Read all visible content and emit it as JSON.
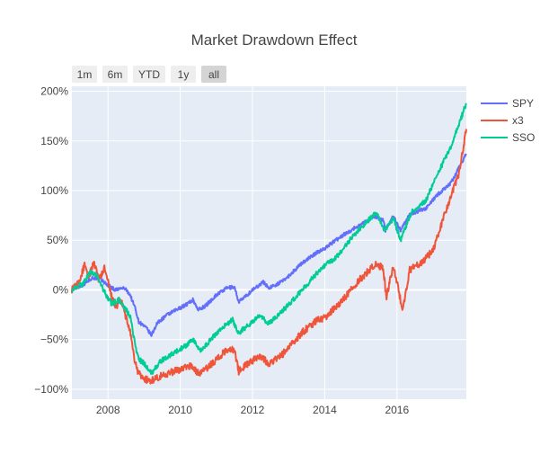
{
  "chart_data": {
    "type": "line",
    "title": "Market Drawdown Effect",
    "xlabel": "",
    "ylabel": "",
    "x_range": [
      2007.0,
      2017.92
    ],
    "ylim": [
      -1.1,
      2.05
    ],
    "x_ticks": [
      {
        "value": 2008,
        "label": "2008"
      },
      {
        "value": 2010,
        "label": "2010"
      },
      {
        "value": 2012,
        "label": "2012"
      },
      {
        "value": 2014,
        "label": "2014"
      },
      {
        "value": 2016,
        "label": "2016"
      }
    ],
    "y_ticks": [
      {
        "value": 2.0,
        "label": "200%"
      },
      {
        "value": 1.5,
        "label": "150%"
      },
      {
        "value": 1.0,
        "label": "100%"
      },
      {
        "value": 0.5,
        "label": "50%"
      },
      {
        "value": 0.0,
        "label": "0%"
      },
      {
        "value": -0.5,
        "label": "−50%"
      },
      {
        "value": -1.0,
        "label": "−100%"
      }
    ],
    "range_buttons": [
      "1m",
      "6m",
      "YTD",
      "1y",
      "all"
    ],
    "active_button": "all",
    "legend_position": "top-right",
    "series": [
      {
        "name": "SPY",
        "color": "#636efa",
        "noise": 0.018,
        "points": [
          [
            2007.0,
            0.0
          ],
          [
            2007.3,
            0.05
          ],
          [
            2007.55,
            0.12
          ],
          [
            2007.75,
            0.12
          ],
          [
            2007.95,
            0.06
          ],
          [
            2008.2,
            0.0
          ],
          [
            2008.45,
            0.02
          ],
          [
            2008.6,
            -0.04
          ],
          [
            2008.75,
            -0.18
          ],
          [
            2008.85,
            -0.32
          ],
          [
            2008.95,
            -0.35
          ],
          [
            2009.1,
            -0.4
          ],
          [
            2009.2,
            -0.46
          ],
          [
            2009.35,
            -0.34
          ],
          [
            2009.6,
            -0.26
          ],
          [
            2009.9,
            -0.2
          ],
          [
            2010.2,
            -0.14
          ],
          [
            2010.35,
            -0.1
          ],
          [
            2010.5,
            -0.2
          ],
          [
            2010.7,
            -0.16
          ],
          [
            2011.0,
            -0.05
          ],
          [
            2011.3,
            0.02
          ],
          [
            2011.5,
            0.03
          ],
          [
            2011.62,
            -0.12
          ],
          [
            2011.8,
            -0.07
          ],
          [
            2012.0,
            0.0
          ],
          [
            2012.3,
            0.08
          ],
          [
            2012.45,
            0.02
          ],
          [
            2012.8,
            0.08
          ],
          [
            2013.0,
            0.14
          ],
          [
            2013.4,
            0.28
          ],
          [
            2013.8,
            0.38
          ],
          [
            2014.0,
            0.42
          ],
          [
            2014.5,
            0.55
          ],
          [
            2014.9,
            0.64
          ],
          [
            2015.4,
            0.74
          ],
          [
            2015.62,
            0.7
          ],
          [
            2015.68,
            0.6
          ],
          [
            2015.9,
            0.74
          ],
          [
            2016.1,
            0.6
          ],
          [
            2016.35,
            0.76
          ],
          [
            2016.8,
            0.82
          ],
          [
            2017.1,
            0.95
          ],
          [
            2017.5,
            1.08
          ],
          [
            2017.92,
            1.37
          ]
        ]
      },
      {
        "name": "x3",
        "color": "#ef553b",
        "noise": 0.035,
        "points": [
          [
            2007.0,
            0.0
          ],
          [
            2007.2,
            0.08
          ],
          [
            2007.35,
            0.25
          ],
          [
            2007.45,
            0.12
          ],
          [
            2007.6,
            0.28
          ],
          [
            2007.75,
            0.1
          ],
          [
            2007.9,
            0.22
          ],
          [
            2008.05,
            0.0
          ],
          [
            2008.2,
            -0.18
          ],
          [
            2008.35,
            -0.1
          ],
          [
            2008.5,
            -0.28
          ],
          [
            2008.6,
            -0.4
          ],
          [
            2008.72,
            -0.68
          ],
          [
            2008.82,
            -0.82
          ],
          [
            2008.95,
            -0.88
          ],
          [
            2009.15,
            -0.92
          ],
          [
            2009.5,
            -0.86
          ],
          [
            2010.0,
            -0.8
          ],
          [
            2010.3,
            -0.76
          ],
          [
            2010.5,
            -0.84
          ],
          [
            2010.7,
            -0.8
          ],
          [
            2011.0,
            -0.7
          ],
          [
            2011.3,
            -0.6
          ],
          [
            2011.5,
            -0.6
          ],
          [
            2011.62,
            -0.82
          ],
          [
            2011.8,
            -0.76
          ],
          [
            2012.2,
            -0.66
          ],
          [
            2012.45,
            -0.74
          ],
          [
            2012.8,
            -0.66
          ],
          [
            2013.0,
            -0.58
          ],
          [
            2013.4,
            -0.42
          ],
          [
            2013.8,
            -0.3
          ],
          [
            2014.0,
            -0.28
          ],
          [
            2014.5,
            -0.1
          ],
          [
            2014.9,
            0.08
          ],
          [
            2015.4,
            0.26
          ],
          [
            2015.62,
            0.22
          ],
          [
            2015.7,
            -0.08
          ],
          [
            2015.9,
            0.24
          ],
          [
            2016.05,
            0.0
          ],
          [
            2016.15,
            -0.22
          ],
          [
            2016.35,
            0.2
          ],
          [
            2016.7,
            0.28
          ],
          [
            2017.0,
            0.4
          ],
          [
            2017.4,
            0.85
          ],
          [
            2017.7,
            1.15
          ],
          [
            2017.92,
            1.62
          ]
        ]
      },
      {
        "name": "SSO",
        "color": "#00cc96",
        "noise": 0.025,
        "points": [
          [
            2007.0,
            0.0
          ],
          [
            2007.3,
            0.06
          ],
          [
            2007.5,
            0.18
          ],
          [
            2007.7,
            0.14
          ],
          [
            2007.9,
            -0.02
          ],
          [
            2008.1,
            -0.14
          ],
          [
            2008.3,
            -0.1
          ],
          [
            2008.5,
            -0.2
          ],
          [
            2008.62,
            -0.28
          ],
          [
            2008.75,
            -0.55
          ],
          [
            2008.85,
            -0.7
          ],
          [
            2009.0,
            -0.74
          ],
          [
            2009.2,
            -0.84
          ],
          [
            2009.45,
            -0.72
          ],
          [
            2009.8,
            -0.64
          ],
          [
            2010.2,
            -0.55
          ],
          [
            2010.35,
            -0.5
          ],
          [
            2010.55,
            -0.62
          ],
          [
            2010.8,
            -0.52
          ],
          [
            2011.1,
            -0.4
          ],
          [
            2011.45,
            -0.3
          ],
          [
            2011.6,
            -0.44
          ],
          [
            2011.8,
            -0.38
          ],
          [
            2012.2,
            -0.26
          ],
          [
            2012.45,
            -0.34
          ],
          [
            2012.8,
            -0.22
          ],
          [
            2013.0,
            -0.15
          ],
          [
            2013.5,
            0.05
          ],
          [
            2013.9,
            0.22
          ],
          [
            2014.3,
            0.32
          ],
          [
            2014.8,
            0.55
          ],
          [
            2015.2,
            0.7
          ],
          [
            2015.45,
            0.78
          ],
          [
            2015.65,
            0.6
          ],
          [
            2015.9,
            0.72
          ],
          [
            2016.1,
            0.5
          ],
          [
            2016.4,
            0.78
          ],
          [
            2016.8,
            0.9
          ],
          [
            2017.1,
            1.15
          ],
          [
            2017.5,
            1.45
          ],
          [
            2017.92,
            1.88
          ]
        ]
      }
    ]
  }
}
